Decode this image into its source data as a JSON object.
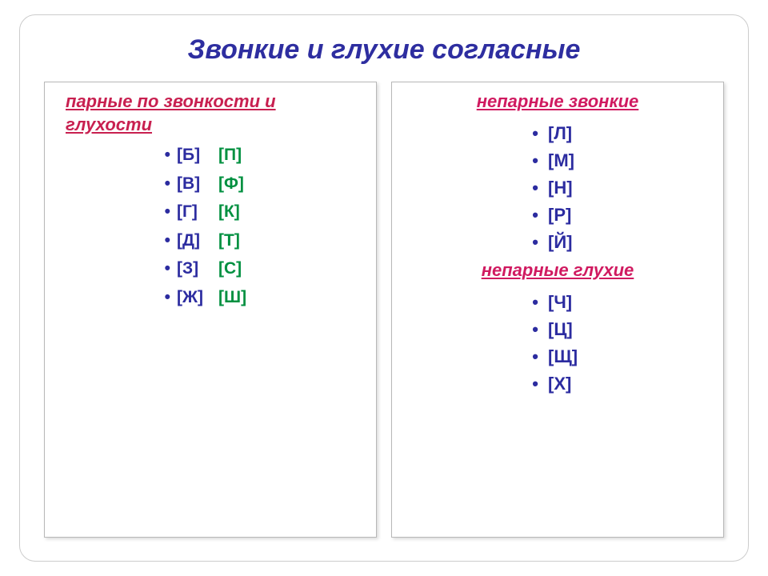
{
  "colors": {
    "title": "#2e2ea0",
    "header_left": "#c82050",
    "header_right": "#d01a60",
    "bullet": "#2c2ca0",
    "voiced_pair": "#2c2ca0",
    "voiceless_pair": "#009040",
    "unpaired_voiced": "#2c2ca0",
    "unpaired_voiceless": "#2c2ca0"
  },
  "title": "Звонкие и глухие согласные",
  "left": {
    "header_top": "парные по звонкости и",
    "header_bottom": "глухости",
    "pairs": [
      {
        "voiced": "[Б]",
        "voiceless": "[П]"
      },
      {
        "voiced": "[В]",
        "voiceless": "[Ф]"
      },
      {
        "voiced": "[Г]",
        "voiceless": "[К]"
      },
      {
        "voiced": "[Д]",
        "voiceless": "[Т]"
      },
      {
        "voiced": "[З]",
        "voiceless": "[С]"
      },
      {
        "voiced": "[Ж]",
        "voiceless": "[Ш]"
      }
    ]
  },
  "right": {
    "header_voiced": "непарные  звонкие",
    "voiced_items": [
      "[Л]",
      "[М]",
      "[Н]",
      "[Р]",
      "[Й]"
    ],
    "header_voiceless": "непарные глухие",
    "voiceless_items": [
      "[Ч]",
      "[Ц]",
      "[Щ]",
      "[Х]"
    ]
  }
}
